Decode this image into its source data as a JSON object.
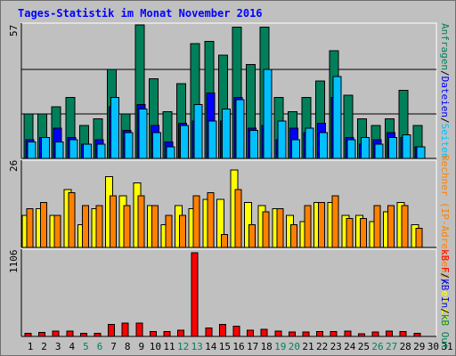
{
  "title": "Tages-Statistik im Monat November 2016",
  "colors": {
    "background": "#c0c0c0",
    "requests": "#00805a",
    "files": "#0000ff",
    "hits": "#00c0ff",
    "sites": "#ff8000",
    "visits": "#ffff00",
    "kbytes": "#ff0000",
    "weekend": "#00805a",
    "weekday": "#000000",
    "label_div": "#000000"
  },
  "chart_data": [
    {
      "type": "bar",
      "panel": "top",
      "y_label": "57",
      "ylim": [
        0,
        57
      ],
      "right_label": [
        {
          "text": "Anfragen",
          "color": "#00805a"
        },
        {
          "text": "/",
          "color": "#000000"
        },
        {
          "text": "Dateien",
          "color": "#0000ff"
        },
        {
          "text": "/",
          "color": "#000000"
        },
        {
          "text": "Seiten",
          "color": "#00c0ff"
        }
      ],
      "categories": [
        1,
        2,
        3,
        4,
        5,
        6,
        7,
        8,
        9,
        10,
        11,
        12,
        13,
        14,
        15,
        16,
        17,
        18,
        19,
        20,
        21,
        22,
        23,
        24,
        25,
        26,
        27,
        28,
        29,
        30
      ],
      "series": [
        {
          "name": "Anfragen",
          "color": "#00805a",
          "values": [
            19,
            19,
            22,
            26,
            14,
            17,
            38,
            19,
            57,
            34,
            20,
            32,
            49,
            50,
            44,
            56,
            40,
            56,
            26,
            20,
            26,
            33,
            46,
            27,
            17,
            14,
            17,
            29,
            14,
            0
          ]
        },
        {
          "name": "Dateien",
          "color": "#0000ff",
          "values": [
            8,
            9,
            13,
            9,
            6,
            8,
            22,
            12,
            23,
            14,
            7,
            15,
            16,
            28,
            16,
            26,
            13,
            14,
            8,
            13,
            11,
            15,
            26,
            9,
            6,
            8,
            11,
            9,
            5,
            0
          ]
        },
        {
          "name": "Seiten",
          "color": "#00c0ff",
          "values": [
            7,
            9,
            7,
            8,
            6,
            6,
            26,
            11,
            21,
            11,
            5,
            14,
            23,
            16,
            21,
            25,
            12,
            38,
            16,
            8,
            13,
            11,
            35,
            8,
            9,
            6,
            9,
            10,
            5,
            0
          ]
        }
      ]
    },
    {
      "type": "bar",
      "panel": "middle",
      "y_label": "26",
      "ylim": [
        0,
        26
      ],
      "right_label": [
        {
          "text": "Rechner (IP-Adressen)",
          "color": "#ff8000"
        },
        {
          "text": "/",
          "color": "#000000"
        },
        {
          "text": "Besuche",
          "color": "#ffff00"
        }
      ],
      "categories": [
        1,
        2,
        3,
        4,
        5,
        6,
        7,
        8,
        9,
        10,
        11,
        12,
        13,
        14,
        15,
        16,
        17,
        18,
        19,
        20,
        21,
        22,
        23,
        24,
        25,
        26,
        27,
        28,
        29,
        30
      ],
      "series": [
        {
          "name": "Besuche",
          "color": "#ffff00",
          "values": [
            10,
            12,
            10,
            18,
            7,
            12,
            22,
            16,
            20,
            13,
            7,
            13,
            12,
            15,
            15,
            24,
            14,
            13,
            12,
            10,
            8,
            14,
            14,
            10,
            10,
            8,
            11,
            14,
            7,
            0
          ]
        },
        {
          "name": "Rechner",
          "color": "#ff8000",
          "values": [
            12,
            14,
            10,
            17,
            13,
            13,
            16,
            13,
            16,
            13,
            10,
            10,
            16,
            17,
            4,
            18,
            7,
            11,
            12,
            7,
            13,
            14,
            16,
            9,
            9,
            13,
            13,
            13,
            6,
            0
          ]
        }
      ]
    },
    {
      "type": "bar",
      "panel": "bottom",
      "y_label": "1106",
      "ylim": [
        0,
        1106
      ],
      "right_label": [
        {
          "text": "kB F",
          "color": "#ff0000"
        },
        {
          "text": "/",
          "color": "#000000"
        },
        {
          "text": "kB In",
          "color": "#0000ff"
        },
        {
          "text": "/",
          "color": "#000000"
        },
        {
          "text": "kB Out",
          "color": "#00805a"
        }
      ],
      "categories": [
        1,
        2,
        3,
        4,
        5,
        6,
        7,
        8,
        9,
        10,
        11,
        12,
        13,
        14,
        15,
        16,
        17,
        18,
        19,
        20,
        21,
        22,
        23,
        24,
        25,
        26,
        27,
        28,
        29,
        30
      ],
      "series": [
        {
          "name": "kB F",
          "color": "#ff0000",
          "values": [
            43,
            53,
            71,
            71,
            43,
            43,
            157,
            178,
            178,
            64,
            64,
            85,
            1106,
            114,
            157,
            135,
            85,
            93,
            71,
            57,
            57,
            64,
            64,
            71,
            36,
            57,
            71,
            64,
            43,
            0
          ]
        }
      ]
    }
  ],
  "x_axis": {
    "labels": [
      "1",
      "2",
      "3",
      "4",
      "5",
      "6",
      "7",
      "8",
      "9",
      "10",
      "11",
      "12",
      "13",
      "14",
      "15",
      "16",
      "17",
      "18",
      "19",
      "20",
      "21",
      "22",
      "23",
      "24",
      "25",
      "26",
      "27",
      "28",
      "29",
      "30",
      "31"
    ],
    "weekend": [
      5,
      6,
      12,
      13,
      19,
      20,
      26,
      27
    ]
  }
}
